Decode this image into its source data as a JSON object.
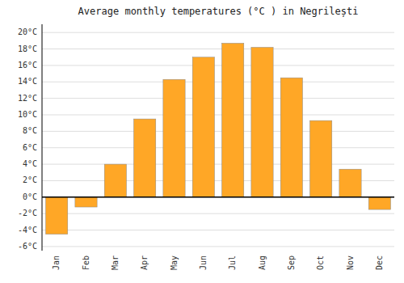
{
  "chart_data": {
    "type": "bar",
    "title": "Average monthly temperatures (°C ) in Negrilești",
    "categories": [
      "Jan",
      "Feb",
      "Mar",
      "Apr",
      "May",
      "Jun",
      "Jul",
      "Aug",
      "Sep",
      "Oct",
      "Nov",
      "Dec"
    ],
    "values": [
      -4.5,
      -1.2,
      4.0,
      9.5,
      14.3,
      17.0,
      18.7,
      18.2,
      14.5,
      9.3,
      3.4,
      -1.5
    ],
    "color": "#FFA726",
    "ylim": [
      -6.5,
      21
    ],
    "yticks": [
      {
        "value": -6,
        "label": "-6°C"
      },
      {
        "value": -4,
        "label": "-4°C"
      },
      {
        "value": -2,
        "label": "-2°C"
      },
      {
        "value": 0,
        "label": "0°C"
      },
      {
        "value": 2,
        "label": "2°C"
      },
      {
        "value": 4,
        "label": "4°C"
      },
      {
        "value": 6,
        "label": "6°C"
      },
      {
        "value": 8,
        "label": "8°C"
      },
      {
        "value": 10,
        "label": "10°C"
      },
      {
        "value": 12,
        "label": "12°C"
      },
      {
        "value": 14,
        "label": "14°C"
      },
      {
        "value": 16,
        "label": "16°C"
      },
      {
        "value": 18,
        "label": "18°C"
      },
      {
        "value": 20,
        "label": "20°C"
      }
    ],
    "grid": true
  }
}
